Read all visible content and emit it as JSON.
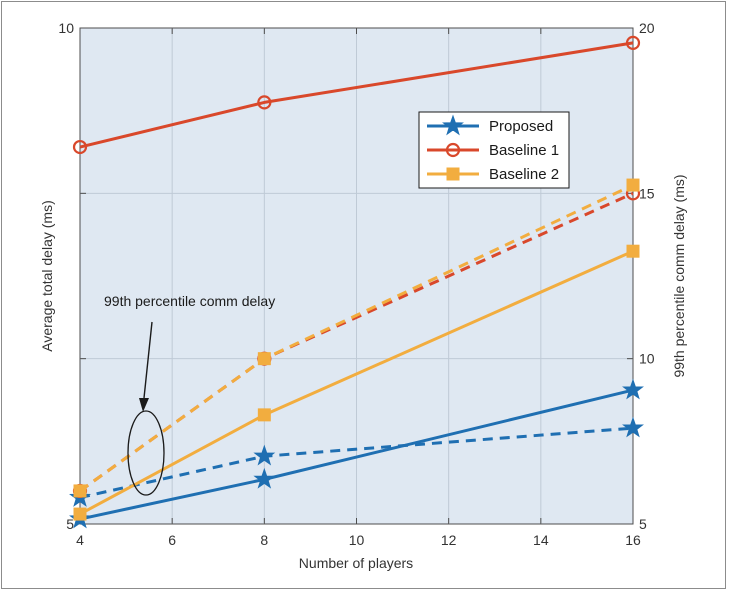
{
  "chart_data": {
    "type": "line",
    "xlabel": "Number of players",
    "ylabel_left": "Average total delay (ms)",
    "ylabel_right": "99th percentile comm delay (ms)",
    "xlim": [
      4,
      16
    ],
    "ylim_left": [
      5,
      10
    ],
    "ylim_right": [
      5,
      20
    ],
    "x_ticks": [
      4,
      6,
      8,
      10,
      12,
      14,
      16
    ],
    "y_ticks_left": [
      5,
      10
    ],
    "y_ticks_right": [
      5,
      10,
      15,
      20
    ],
    "grid": true,
    "legend_position": "top-right",
    "x": [
      4,
      8,
      16
    ],
    "series": [
      {
        "name": "Proposed",
        "axis": "left",
        "style": "solid",
        "marker": "star",
        "color": "#1f6fb2",
        "values": [
          5.05,
          5.45,
          6.35
        ]
      },
      {
        "name": "Baseline 1",
        "axis": "left",
        "style": "solid",
        "marker": "circle",
        "color": "#d9482b",
        "values": [
          8.8,
          9.25,
          9.85
        ]
      },
      {
        "name": "Baseline 2",
        "axis": "left",
        "style": "solid",
        "marker": "square",
        "color": "#f2ad3f",
        "values": [
          5.1,
          6.1,
          7.75
        ]
      },
      {
        "name": "",
        "axis": "right",
        "style": "dashed",
        "marker": "star",
        "color": "#1f6fb2",
        "values": [
          5.8,
          7.05,
          7.9
        ]
      },
      {
        "name": "",
        "axis": "right",
        "style": "dashed",
        "marker": "circle",
        "color": "#d9482b",
        "values": [
          6.0,
          10.0,
          15.0
        ]
      },
      {
        "name": "",
        "axis": "right",
        "style": "dashed",
        "marker": "square",
        "color": "#f2ad3f",
        "values": [
          6.0,
          10.0,
          15.25
        ]
      }
    ],
    "annotations": [
      {
        "text": "99th percentile comm delay"
      }
    ]
  }
}
